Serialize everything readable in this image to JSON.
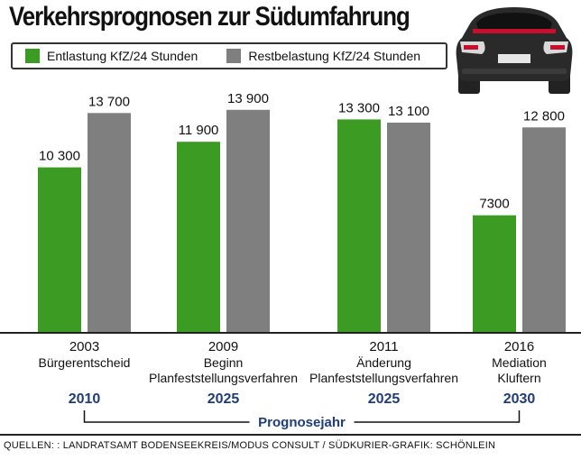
{
  "title": "Verkehrsprognosen zur Südumfahrung",
  "legend": {
    "entlastung": "Entlastung KfZ/24 Stunden",
    "restbelastung": "Restbelastung KfZ/24 Stunden"
  },
  "colors": {
    "green": "#3c9b22",
    "gray": "#7f7f7f",
    "blue": "#1f3d7a"
  },
  "icons": {
    "car": "car-rear-icon"
  },
  "chart_data": {
    "type": "bar",
    "title": "Verkehrsprognosen zur Südumfahrung",
    "xlabel": "Prognosejahr",
    "ylabel": "",
    "ylim": [
      0,
      14500
    ],
    "grid": false,
    "legend_position": "top-left",
    "categories": [
      {
        "year": "2003",
        "lines": [
          "Bürgerentscheid"
        ],
        "forecast": "2010"
      },
      {
        "year": "2009",
        "lines": [
          "Beginn",
          "Planfeststellungsverfahren"
        ],
        "forecast": "2025"
      },
      {
        "year": "2011",
        "lines": [
          "Änderung",
          "Planfeststellungsverfahren"
        ],
        "forecast": "2025"
      },
      {
        "year": "2016",
        "lines": [
          "Mediation",
          "Kluftern"
        ],
        "forecast": "2030"
      }
    ],
    "series": [
      {
        "name": "Entlastung KfZ/24 Stunden",
        "values": [
          10300,
          11900,
          13300,
          7300
        ],
        "labels": [
          "10 300",
          "11 900",
          "13 300",
          "7300"
        ]
      },
      {
        "name": "Restbelastung KfZ/24 Stunden",
        "values": [
          13700,
          13900,
          13100,
          12800
        ],
        "labels": [
          "13 700",
          "13 900",
          "13 100",
          "12 800"
        ]
      }
    ]
  },
  "footer": {
    "source": "QUELLEN: : LANDRATSAMT BODENSEEKREIS/MODUS CONSULT  / SÜDKURIER-GRAFIK: SCHÖNLEIN"
  }
}
